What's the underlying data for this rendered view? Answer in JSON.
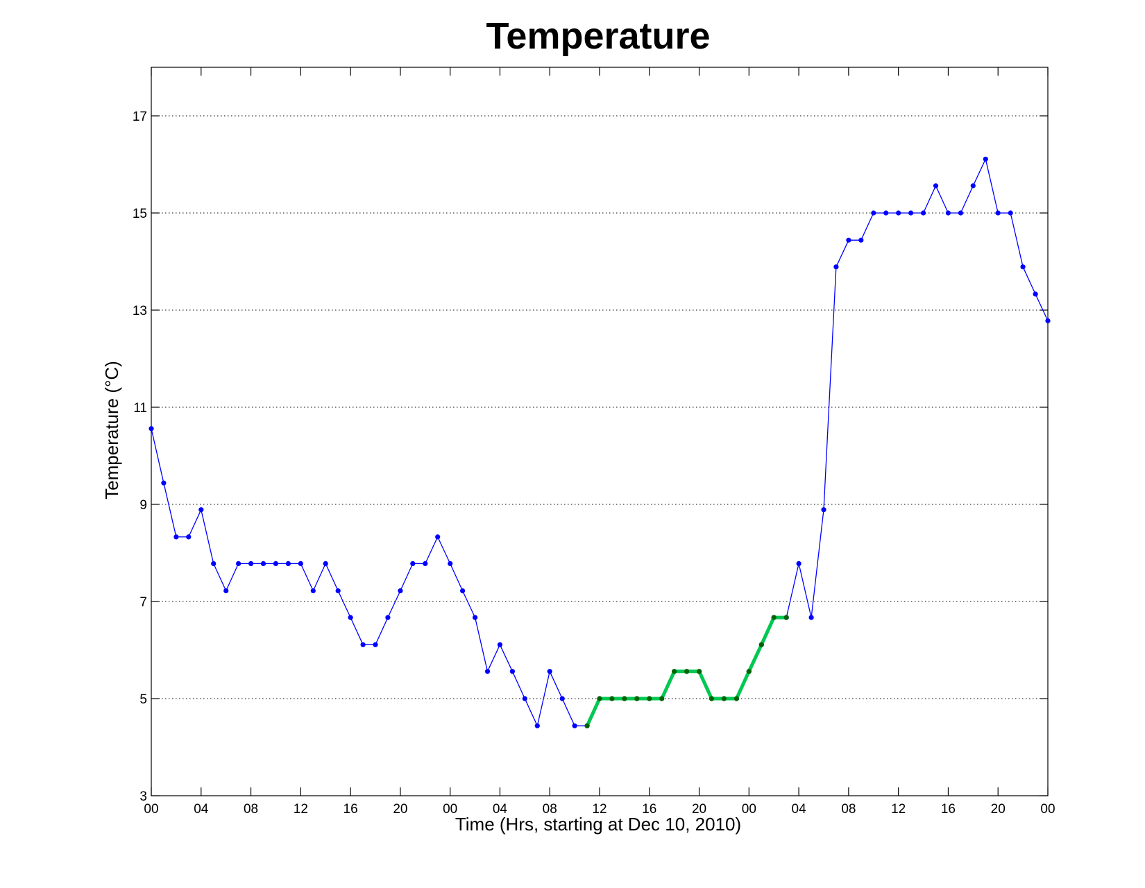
{
  "chart_data": {
    "type": "line",
    "title": "Temperature",
    "xlabel": "Time (Hrs, starting at Dec 10, 2010)",
    "ylabel": "Temperature (°C)",
    "x_unit": "hours",
    "xlim": [
      0,
      72
    ],
    "ylim": [
      3,
      18
    ],
    "yticks": [
      3,
      5,
      7,
      9,
      11,
      13,
      15,
      17
    ],
    "xticks": [
      0,
      4,
      8,
      12,
      16,
      20,
      24,
      28,
      32,
      36,
      40,
      44,
      48,
      52,
      56,
      60,
      64,
      68,
      72
    ],
    "xtick_labels": [
      "00",
      "04",
      "08",
      "12",
      "16",
      "20",
      "00",
      "04",
      "08",
      "12",
      "16",
      "20",
      "00",
      "04",
      "08",
      "12",
      "16",
      "20",
      "00"
    ],
    "grid": "horizontal dotted",
    "series": [
      {
        "color": "#0000ff",
        "marker_color": "#0000ff",
        "x": [
          0,
          1,
          2,
          3,
          4,
          5,
          6,
          7,
          8,
          9,
          10,
          11,
          12,
          13,
          14,
          15,
          16,
          17,
          18,
          19,
          20,
          21,
          22,
          23,
          24,
          25,
          26,
          27,
          28,
          29,
          30,
          31,
          32,
          33,
          34,
          35,
          36,
          37,
          38,
          39,
          40,
          41,
          42,
          43,
          44,
          45,
          46,
          47,
          48,
          49,
          50,
          51,
          52,
          53,
          54,
          55,
          56,
          57,
          58,
          59,
          60,
          61,
          62,
          63,
          64,
          65,
          66,
          67,
          68,
          69,
          70,
          71,
          72
        ],
        "y": [
          10.56,
          9.44,
          8.33,
          8.33,
          8.89,
          7.78,
          7.22,
          7.78,
          7.78,
          7.78,
          7.78,
          7.78,
          7.78,
          7.22,
          7.78,
          7.22,
          6.67,
          6.11,
          6.11,
          6.67,
          7.22,
          7.78,
          7.78,
          8.33,
          7.78,
          7.22,
          6.67,
          5.56,
          6.11,
          5.56,
          5.0,
          4.44,
          5.56,
          5.0,
          4.44,
          4.44,
          5.0,
          5.0,
          5.0,
          5.0,
          5.0,
          5.0,
          5.56,
          5.56,
          5.56,
          5.0,
          5.0,
          5.0,
          5.56,
          6.11,
          6.67,
          6.67,
          7.78,
          6.67,
          8.89,
          13.89,
          14.44,
          14.44,
          15.0,
          15.0,
          15.0,
          15.0,
          15.0,
          15.56,
          15.0,
          15.0,
          15.56,
          16.11,
          15.0,
          15.0,
          13.89,
          13.33,
          12.78
        ]
      },
      {
        "color": "#00c853",
        "marker_color": "#006400",
        "x": [
          35,
          36,
          37,
          38,
          39,
          40,
          41,
          42,
          43,
          44,
          45,
          46,
          47,
          48,
          49,
          50,
          51
        ],
        "y": [
          4.44,
          5.0,
          5.0,
          5.0,
          5.0,
          5.0,
          5.0,
          5.56,
          5.56,
          5.56,
          5.0,
          5.0,
          5.0,
          5.56,
          6.11,
          6.67,
          6.67
        ]
      }
    ]
  }
}
